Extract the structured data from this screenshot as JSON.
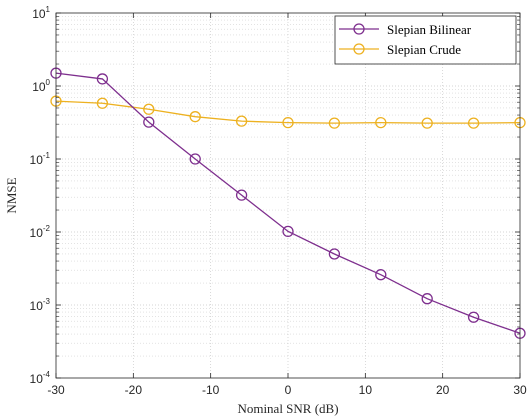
{
  "chart_data": {
    "type": "line",
    "title": "",
    "xlabel": "Nominal SNR (dB)",
    "ylabel": "NMSE",
    "xlim": [
      -30,
      30
    ],
    "ylim": [
      0.0001,
      10
    ],
    "yscale": "log",
    "grid": true,
    "minor_grid": true,
    "legend_position": "top-right",
    "x": [
      -30,
      -24,
      -18,
      -12,
      -6,
      0,
      6,
      12,
      18,
      24,
      30
    ],
    "x_ticks": [
      "-30",
      "-20",
      "-10",
      "0",
      "10",
      "20",
      "30"
    ],
    "x_tick_values": [
      -30,
      -20,
      -10,
      0,
      10,
      20,
      30
    ],
    "y_ticks": [
      {
        "base": "10",
        "exp": "1"
      },
      {
        "base": "10",
        "exp": "0"
      },
      {
        "base": "10",
        "exp": "-1"
      },
      {
        "base": "10",
        "exp": "-2"
      },
      {
        "base": "10",
        "exp": "-3"
      },
      {
        "base": "10",
        "exp": "-4"
      }
    ],
    "y_tick_exponents": [
      1,
      0,
      -1,
      -2,
      -3,
      -4
    ],
    "series": [
      {
        "name": "Slepian Bilinear",
        "color": "#7E2F8E",
        "marker": "circle",
        "values": [
          1.5,
          1.25,
          0.32,
          0.1,
          0.032,
          0.0102,
          0.005,
          0.0026,
          0.00122,
          0.00068,
          0.00041
        ]
      },
      {
        "name": "Slepian Crude",
        "color": "#EDB120",
        "marker": "circle",
        "values": [
          0.62,
          0.58,
          0.48,
          0.38,
          0.33,
          0.315,
          0.31,
          0.315,
          0.31,
          0.31,
          0.315
        ]
      }
    ]
  }
}
